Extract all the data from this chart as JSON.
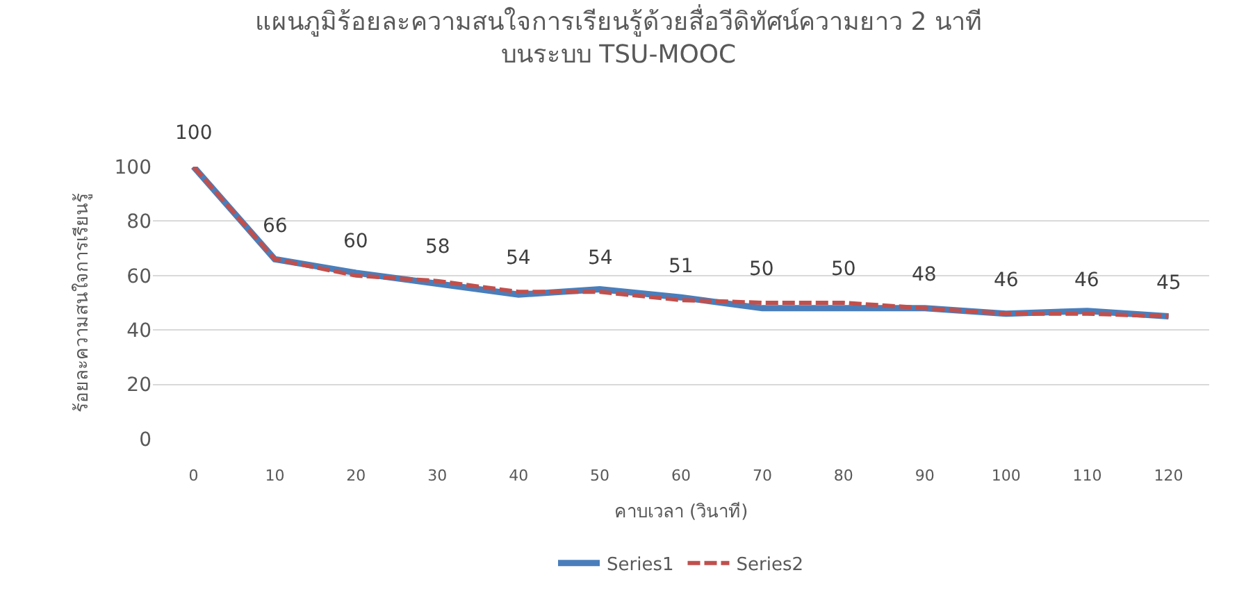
{
  "chart_data": {
    "type": "line",
    "title": "แผนภูมิร้อยละความสนใจการเรียนรู้ด้วยสื่อวีดิทัศน์ความยาว 2 นาที\nบนระบบ TSU-MOOC",
    "xlabel": "คาบเวลา (วินาที)",
    "ylabel": "ร้อยละความสนใจการเรียนรู้",
    "categories": [
      "0",
      "10",
      "20",
      "30",
      "40",
      "50",
      "60",
      "70",
      "80",
      "90",
      "100",
      "110",
      "120"
    ],
    "series": [
      {
        "name": "Series1",
        "color": "#4a7ebb",
        "line_style": "solid",
        "values": [
          100,
          66,
          61,
          57,
          53,
          55,
          52,
          48,
          48,
          48,
          46,
          47,
          45
        ]
      },
      {
        "name": "Series2",
        "color": "#c0504d",
        "line_style": "dashed",
        "values": [
          100,
          66,
          60,
          58,
          54,
          54,
          51,
          50,
          50,
          48,
          46,
          46,
          45
        ],
        "value_labels": [
          "100",
          "66",
          "60",
          "58",
          "54",
          "54",
          "51",
          "50",
          "50",
          "48",
          "46",
          "46",
          "45"
        ]
      }
    ],
    "ylim": [
      0,
      100
    ],
    "yticks": [
      0,
      20,
      40,
      60,
      80,
      100
    ],
    "grid": "y",
    "legend": "bottom",
    "marker": "none"
  }
}
